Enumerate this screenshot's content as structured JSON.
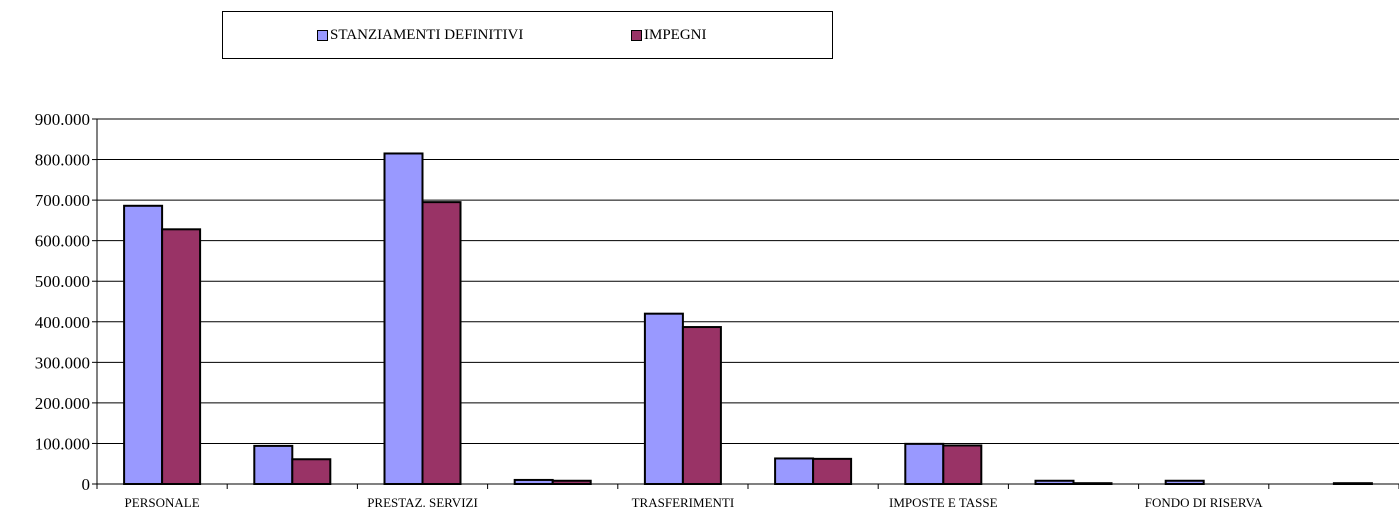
{
  "chart_data": {
    "type": "bar",
    "categories": [
      "PERSONALE",
      "",
      "PRESTAZ. SERVIZI",
      "",
      "TRASFERIMENTI",
      "",
      "IMPOSTE E TASSE",
      "",
      "FONDO DI RISERVA",
      ""
    ],
    "series": [
      {
        "name": "STANZIAMENTI DEFINITIVI",
        "color": "#9999ff",
        "values": [
          686000,
          94000,
          815000,
          10000,
          420000,
          63000,
          99000,
          8000,
          8000,
          0
        ]
      },
      {
        "name": "IMPEGNI",
        "color": "#993366",
        "values": [
          628000,
          61000,
          695000,
          8000,
          387000,
          62000,
          95000,
          2000,
          0,
          2000
        ]
      }
    ],
    "ylim": [
      0,
      900000
    ],
    "yticks": [
      0,
      100000,
      200000,
      300000,
      400000,
      500000,
      600000,
      700000,
      800000,
      900000
    ],
    "ytick_labels": [
      "0",
      "100.000",
      "200.000",
      "300.000",
      "400.000",
      "500.000",
      "600.000",
      "700.000",
      "800.000",
      "900.000"
    ],
    "grid": true,
    "legend_position": "top"
  }
}
